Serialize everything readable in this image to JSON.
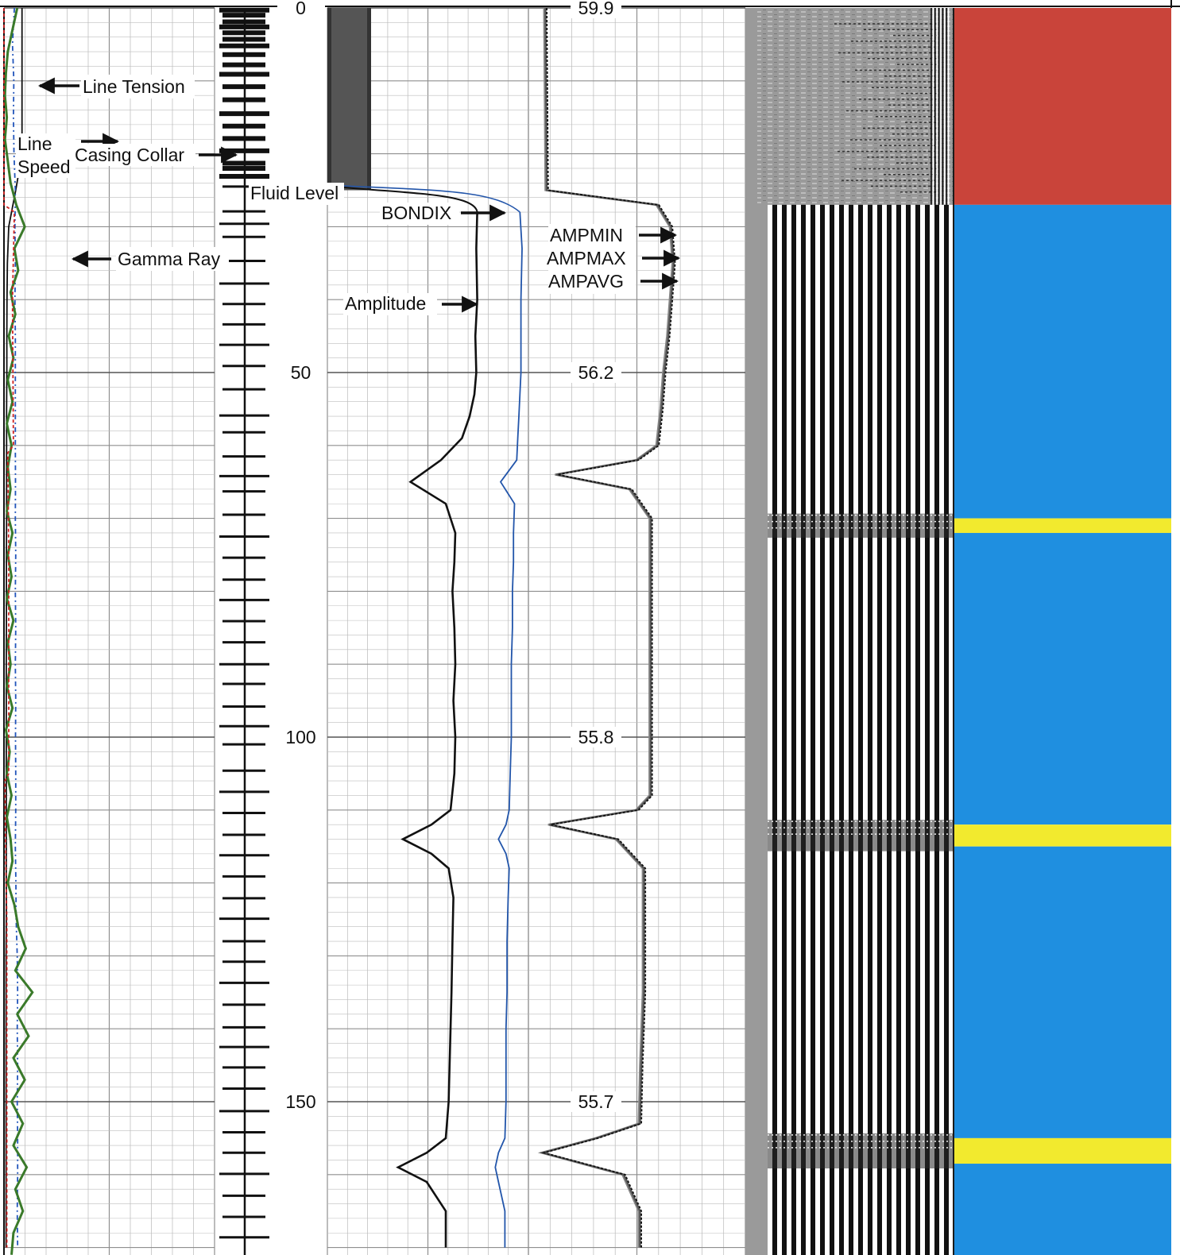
{
  "chart_data": {
    "type": "line",
    "title": "",
    "tracks": {
      "track1": {
        "series": [
          {
            "name": "Line Tension",
            "color": "#111111",
            "x": [
              0,
              5,
              10,
              15,
              20,
              25,
              30,
              35,
              40,
              45,
              50,
              55,
              60,
              65,
              70,
              75,
              80,
              85,
              90,
              95,
              100,
              105,
              110,
              115,
              120,
              125,
              130,
              135,
              140,
              145,
              150,
              155,
              160,
              165,
              170
            ],
            "y": [
              0.95,
              0.95,
              0.95,
              0.95,
              0.95,
              0.62,
              0.25,
              0.18,
              0.16,
              0.15,
              0.15,
              0.14,
              0.14,
              0.14,
              0.14,
              0.13,
              0.13,
              0.13,
              0.12,
              0.12,
              0.12,
              0.12,
              0.12,
              0.12,
              0.12,
              0.12,
              0.11,
              0.11,
              0.11,
              0.11,
              0.11,
              0.11,
              0.11,
              0.11,
              0.11
            ]
          },
          {
            "name": "Line Speed",
            "color": "#2255bb",
            "x": [
              0,
              5,
              10,
              15,
              20,
              25,
              30,
              35,
              40,
              45,
              50,
              55,
              60,
              65,
              70,
              75,
              80,
              85,
              90,
              95,
              100,
              105,
              110,
              115,
              120,
              125,
              130,
              135,
              140,
              145,
              150,
              155,
              160,
              165,
              170
            ],
            "y": [
              0.55,
              0.45,
              0.52,
              0.5,
              0.53,
              0.6,
              0.58,
              0.6,
              0.58,
              0.6,
              0.6,
              0.6,
              0.6,
              0.61,
              0.6,
              0.62,
              0.6,
              0.62,
              0.6,
              0.62,
              0.61,
              0.62,
              0.62,
              0.6,
              0.63,
              0.64,
              0.7,
              0.72,
              0.7,
              0.72,
              0.7,
              0.72,
              0.72,
              0.7,
              0.72
            ]
          },
          {
            "name": "Gamma Ray",
            "color": "#3a7a2a",
            "x": [
              0,
              3,
              6,
              9,
              12,
              15,
              18,
              21,
              24,
              27,
              30,
              33,
              36,
              39,
              42,
              45,
              48,
              51,
              54,
              57,
              60,
              63,
              66,
              69,
              72,
              75,
              78,
              81,
              84,
              87,
              90,
              93,
              96,
              99,
              102,
              105,
              108,
              111,
              114,
              117,
              120,
              123,
              126,
              129,
              132,
              135,
              138,
              141,
              144,
              147,
              150,
              153,
              156,
              159,
              162,
              165,
              168,
              171
            ],
            "y": [
              0.7,
              0.45,
              0.2,
              0.1,
              0.05,
              0.15,
              0.05,
              0.2,
              0.35,
              0.65,
              1.1,
              0.55,
              0.75,
              0.35,
              0.6,
              0.25,
              0.5,
              0.2,
              0.45,
              0.15,
              0.4,
              0.2,
              0.35,
              0.15,
              0.45,
              0.2,
              0.4,
              0.15,
              0.5,
              0.2,
              0.35,
              0.15,
              0.45,
              0.1,
              0.3,
              0.15,
              0.4,
              0.15,
              0.35,
              0.45,
              0.2,
              0.55,
              0.75,
              1.15,
              0.6,
              1.5,
              0.7,
              1.3,
              0.5,
              1.1,
              0.4,
              1.0,
              0.5,
              1.2,
              0.6,
              1.0,
              0.5,
              0.4
            ]
          },
          {
            "name": "",
            "color": "#cc2222",
            "x": [
              0,
              27,
              28,
              40,
              60,
              61,
              75,
              105,
              106,
              118,
              125,
              160,
              170
            ],
            "y": [
              0.0,
              0.0,
              0.55,
              0.45,
              0.5,
              0.2,
              0.25,
              0.25,
              0.05,
              0.1,
              0.15,
              0.15,
              0.15
            ]
          }
        ],
        "labels": [
          "Line Tension",
          "Line Speed",
          "Casing Collar",
          "Gamma Ray"
        ]
      },
      "casing_collar": {
        "name": "Casing Collar",
        "ticks": [
          0.3,
          1.0,
          1.9,
          2.6,
          3.4,
          4.3,
          5.2,
          6.4,
          7.8,
          9.1,
          10.8,
          12.6,
          14.5,
          16.2,
          17.9,
          19.6,
          21.3,
          22.0,
          23.1,
          24.5,
          27.9,
          29.6,
          31.4,
          34.7,
          37.8,
          40.6,
          43.4,
          46.2,
          49.1,
          52.3,
          55.9,
          58.2,
          61.5,
          64.2,
          66.3,
          69.5,
          72.5,
          75.4,
          78.4,
          81.2,
          84.1,
          87.0,
          90.0,
          92.7,
          95.8,
          98.5,
          101.0,
          104.6,
          107.5,
          110.4,
          113.4,
          116.2,
          119.1,
          122.1,
          124.9,
          128.0,
          130.8,
          133.7,
          136.7,
          139.8,
          142.5,
          145.3,
          148.2,
          151.3,
          154.2,
          157.0,
          159.9,
          162.9,
          165.8,
          168.6
        ]
      },
      "track2": {
        "x": [
          25,
          28,
          33,
          40,
          45,
          50,
          53,
          56,
          59,
          62,
          65,
          68,
          72,
          76,
          80,
          85,
          90,
          95,
          100,
          105,
          110,
          112,
          114,
          116,
          118,
          122,
          128,
          135,
          140,
          145,
          150,
          155,
          157,
          159,
          161,
          165,
          170
        ],
        "series": [
          {
            "name": "Amplitude",
            "color": "#111111",
            "values": [
              null,
              0.78,
              0.77,
              0.78,
              0.76,
              0.77,
              0.75,
              0.7,
              0.62,
              0.4,
              0.08,
              0.45,
              0.55,
              0.54,
              0.52,
              0.54,
              0.55,
              0.53,
              0.55,
              0.54,
              0.5,
              0.3,
              0.0,
              0.3,
              0.48,
              0.53,
              0.52,
              0.51,
              0.5,
              0.49,
              0.48,
              0.45,
              0.25,
              -0.05,
              0.25,
              0.45,
              0.45
            ]
          },
          {
            "name": "BONDIX",
            "color": "#2255aa",
            "values": [
              null,
              0.98,
              1.0,
              0.99,
              0.99,
              0.99,
              0.98,
              0.97,
              0.96,
              0.95,
              0.8,
              0.93,
              0.92,
              0.92,
              0.91,
              0.91,
              0.9,
              0.9,
              0.9,
              0.89,
              0.88,
              0.85,
              0.78,
              0.85,
              0.88,
              0.87,
              0.86,
              0.86,
              0.85,
              0.85,
              0.85,
              0.84,
              0.78,
              0.75,
              0.78,
              0.84,
              0.84
            ]
          }
        ],
        "fluid_level": {
          "name": "Fluid Level",
          "depth": 25
        }
      },
      "track3": {
        "depth_labels": [
          {
            "depth": 0,
            "value": "59.9"
          },
          {
            "depth": 50,
            "value": "56.2"
          },
          {
            "depth": 100,
            "value": "55.8"
          },
          {
            "depth": 150,
            "value": "55.7"
          }
        ],
        "series_names": [
          "AMPMIN",
          "AMPMAX",
          "AMPAVG"
        ],
        "x": [
          0,
          25,
          27,
          30,
          35,
          40,
          45,
          50,
          55,
          60,
          62,
          64,
          66,
          70,
          80,
          90,
          100,
          108,
          110,
          112,
          114,
          118,
          125,
          135,
          145,
          153,
          155,
          157,
          160,
          165,
          170
        ],
        "values": [
          0.02,
          0.03,
          0.85,
          0.95,
          0.97,
          0.95,
          0.93,
          0.9,
          0.88,
          0.85,
          0.7,
          0.1,
          0.65,
          0.8,
          0.8,
          0.8,
          0.8,
          0.8,
          0.7,
          0.05,
          0.55,
          0.75,
          0.75,
          0.75,
          0.73,
          0.72,
          0.4,
          0.0,
          0.6,
          0.72,
          0.72
        ]
      },
      "vdl": {
        "cemented_from": 27
      },
      "bond_map": {
        "colors": {
          "red": "#c9443a",
          "blue": "#1f8fe0",
          "yellow": "#f2ea2e"
        },
        "bands": [
          {
            "from": 0,
            "to": 27,
            "color": "red"
          },
          {
            "from": 27,
            "to": 70,
            "color": "blue"
          },
          {
            "from": 70,
            "to": 72,
            "color": "yellow"
          },
          {
            "from": 72,
            "to": 112,
            "color": "blue"
          },
          {
            "from": 112,
            "to": 115,
            "color": "yellow"
          },
          {
            "from": 115,
            "to": 155,
            "color": "blue"
          },
          {
            "from": 155,
            "to": 158.5,
            "color": "yellow"
          },
          {
            "from": 158.5,
            "to": 172,
            "color": "blue"
          }
        ]
      }
    },
    "depth_axis": {
      "ticks": [
        "0",
        "50",
        "100",
        "150"
      ],
      "range": [
        0,
        172
      ]
    },
    "labels": {
      "line_tension": "Line Tension",
      "line_speed_1": "Line",
      "line_speed_2": "Speed",
      "casing_collar": "Casing Collar",
      "gamma_ray": "Gamma Ray",
      "fluid_level": "Fluid Level",
      "bondix": "BONDIX",
      "amplitude": "Amplitude",
      "ampmin": "AMPMIN",
      "ampmax": "AMPMAX",
      "ampavg": "AMPAVG"
    }
  }
}
